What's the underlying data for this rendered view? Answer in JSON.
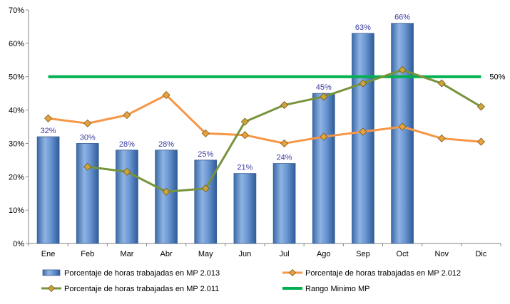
{
  "chart_data": {
    "type": "bar",
    "categories": [
      "Ene",
      "Feb",
      "Mar",
      "Abr",
      "May",
      "Jun",
      "Jul",
      "Ago",
      "Sep",
      "Oct",
      "Nov",
      "Dic"
    ],
    "ylim": [
      0,
      70
    ],
    "yticks": [
      0,
      10,
      20,
      30,
      40,
      50,
      60,
      70
    ],
    "ytick_labels": [
      "0%",
      "10%",
      "20%",
      "30%",
      "40%",
      "50%",
      "60%",
      "70%"
    ],
    "grid": false,
    "legend_position": "bottom",
    "series": [
      {
        "name": "Porcentaje de horas trabajadas en MP 2.013",
        "kind": "bar",
        "color": "#4f81bd",
        "values": [
          32,
          30,
          28,
          28,
          25,
          21,
          24,
          45,
          63,
          66,
          null,
          null
        ],
        "labels": [
          "32%",
          "30%",
          "28%",
          "28%",
          "25%",
          "21%",
          "24%",
          "45%",
          "63%",
          "66%",
          "",
          ""
        ]
      },
      {
        "name": "Porcentaje de horas trabajadas en MP 2.012",
        "kind": "line",
        "color": "#f79646",
        "marker_color": "#e8a23c",
        "values": [
          37.5,
          36,
          38.5,
          44.5,
          33,
          32.5,
          30,
          32,
          33.5,
          35,
          31.5,
          30.5
        ]
      },
      {
        "name": "Porcentaje de horas trabajadas en MP 2.011",
        "kind": "line",
        "color": "#77933c",
        "marker_color": "#c9a43a",
        "values": [
          null,
          23,
          21.5,
          15.5,
          16.5,
          36.5,
          41.5,
          44,
          48,
          52,
          48,
          41
        ]
      },
      {
        "name": "Rango Minimo MP",
        "kind": "reference",
        "color": "#00b050",
        "value": 50,
        "label": "50%"
      }
    ]
  }
}
